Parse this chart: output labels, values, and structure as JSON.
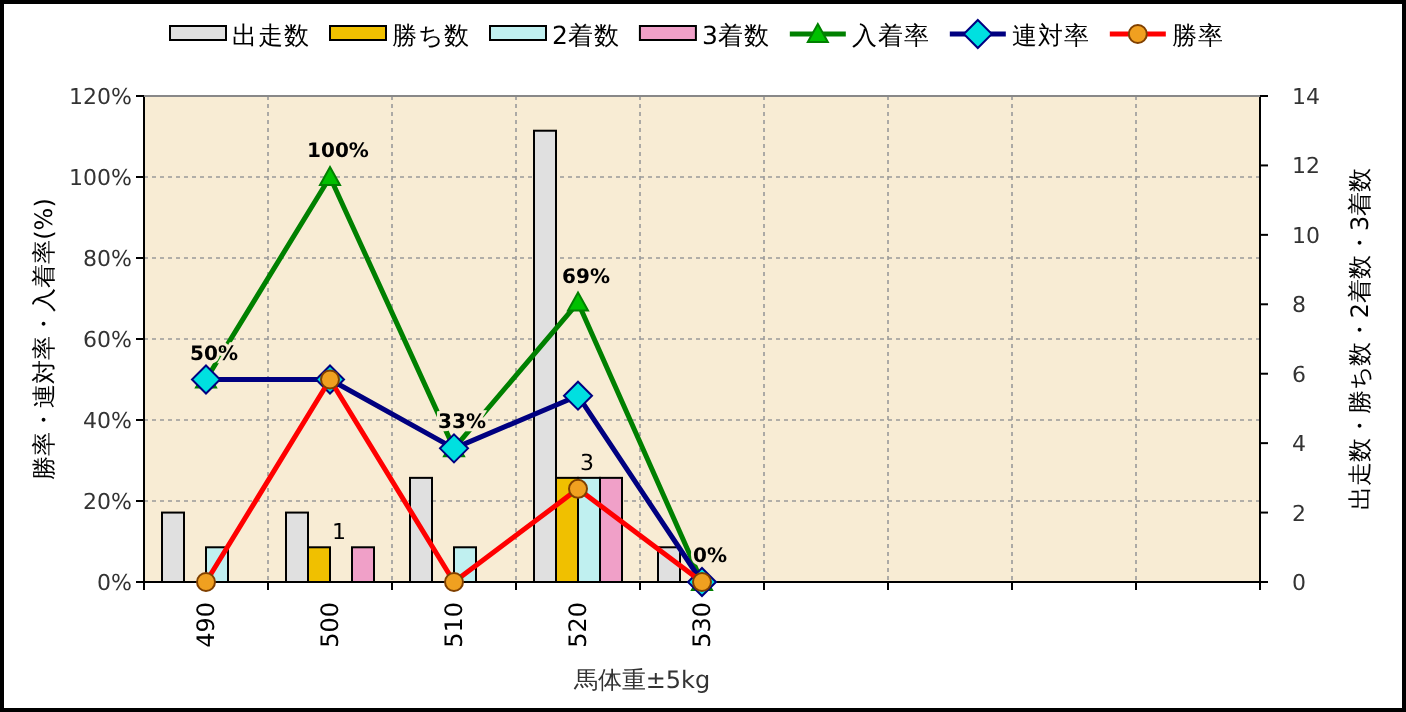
{
  "chart_data": {
    "type": "bar",
    "xlabel": "馬体重±5kg",
    "ylabel": "勝率・連対率・入着率(%)",
    "y2label": "出走数・勝ち数・2着数・3着数",
    "categories": [
      "490",
      "500",
      "510",
      "520",
      "530",
      null,
      null,
      null,
      null
    ],
    "series": [
      {
        "name": "出走数",
        "axis": "y2",
        "color": "#e0e0e0",
        "values": [
          2,
          2,
          3,
          13,
          1,
          null,
          null,
          null,
          null
        ]
      },
      {
        "name": "勝ち数",
        "axis": "y2",
        "color": "#f0c000",
        "values": [
          0,
          1,
          0,
          3,
          0,
          null,
          null,
          null,
          null
        ],
        "value_labels": [
          null,
          "1",
          null,
          "3",
          null,
          null,
          null,
          null,
          null
        ]
      },
      {
        "name": "2着数",
        "axis": "y2",
        "color": "#c0f0f0",
        "values": [
          1,
          0,
          1,
          3,
          0,
          null,
          null,
          null,
          null
        ]
      },
      {
        "name": "3着数",
        "axis": "y2",
        "color": "#f0a0c8",
        "values": [
          0,
          1,
          0,
          3,
          0,
          null,
          null,
          null,
          null
        ]
      },
      {
        "name": "入着率",
        "type": "line",
        "marker": "triangle",
        "color": "#008000",
        "values": [
          50,
          100,
          33,
          69,
          0,
          null,
          null,
          null,
          null
        ],
        "value_labels": [
          "50%",
          "100%",
          "33%",
          "69%",
          "0%",
          null,
          null,
          null,
          null
        ]
      },
      {
        "name": "連対率",
        "type": "line",
        "marker": "diamond",
        "color": "#000080",
        "values": [
          50,
          50,
          33,
          46,
          0,
          null,
          null,
          null,
          null
        ]
      },
      {
        "name": "勝率",
        "type": "line",
        "marker": "circle",
        "color": "#ff0000",
        "values": [
          0,
          50,
          0,
          23,
          0,
          null,
          null,
          null,
          null
        ]
      }
    ],
    "ylim": [
      0,
      120
    ],
    "yticks": [
      {
        "value": 0,
        "label": "0%"
      },
      {
        "value": 20,
        "label": "20%"
      },
      {
        "value": 40,
        "label": "40%"
      },
      {
        "value": 60,
        "label": "60%"
      },
      {
        "value": 80,
        "label": "80%"
      },
      {
        "value": 100,
        "label": "100%"
      },
      {
        "value": 120,
        "label": "120%"
      }
    ],
    "y2lim": [
      0,
      14
    ],
    "y2ticks": [
      0,
      2,
      4,
      6,
      8,
      10,
      12,
      14
    ],
    "grid": true,
    "legend": "top"
  }
}
